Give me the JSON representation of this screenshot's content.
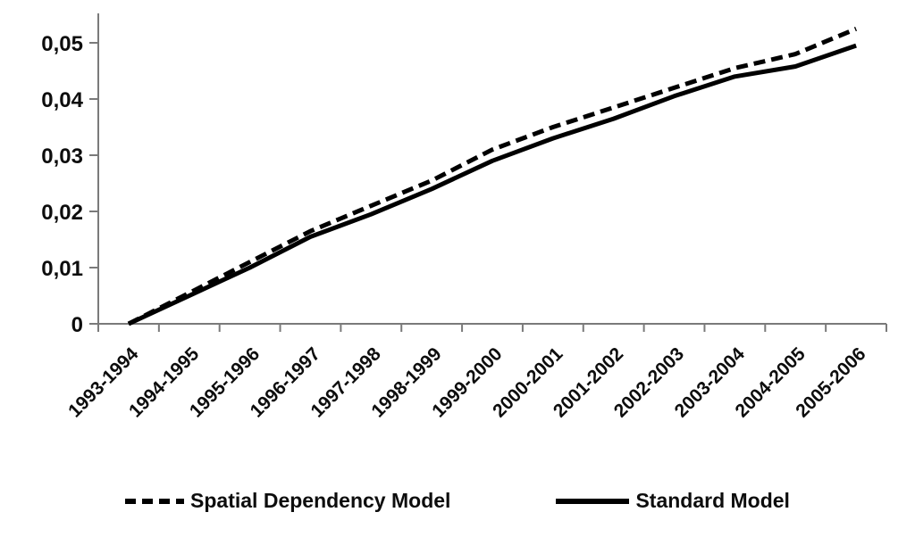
{
  "chart_data": {
    "type": "line",
    "title": "",
    "xlabel": "",
    "ylabel": "",
    "categories": [
      "1993-1994",
      "1994-1995",
      "1995-1996",
      "1996-1997",
      "1997-1998",
      "1998-1999",
      "1999-2000",
      "2000-2001",
      "2001-2002",
      "2002-2003",
      "2003-2004",
      "2004-2005",
      "2005-2006"
    ],
    "series": [
      {
        "name": "Spatial Dependency Model",
        "line_style": "dashed",
        "color": "#000000",
        "values": [
          0,
          0.0055,
          0.011,
          0.0165,
          0.021,
          0.0255,
          0.031,
          0.035,
          0.0385,
          0.042,
          0.0455,
          0.048,
          0.0525
        ]
      },
      {
        "name": "Standard Model",
        "line_style": "solid",
        "color": "#000000",
        "values": [
          0,
          0.005,
          0.01,
          0.0155,
          0.0195,
          0.024,
          0.029,
          0.033,
          0.0365,
          0.0405,
          0.044,
          0.0458,
          0.0495
        ]
      }
    ],
    "ylim": [
      0,
      0.055
    ],
    "yticks": [
      0,
      0.01,
      0.02,
      0.03,
      0.04,
      0.05
    ],
    "ytick_labels": [
      "0",
      "0,01",
      "0,02",
      "0,03",
      "0,04",
      "0,05"
    ],
    "decimal_separator": ",",
    "grid": false,
    "legend_position": "bottom-center",
    "x_label_rotation_deg": 45,
    "colors": {
      "series": "#000000",
      "axis": "#7a7a7a",
      "text": "#0d0d0d",
      "background": "#ffffff"
    }
  }
}
